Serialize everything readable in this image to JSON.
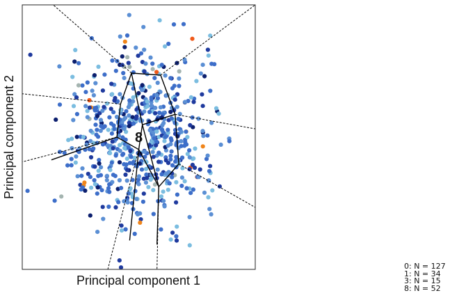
{
  "chart_data": {
    "type": "scatter",
    "title": "",
    "xlabel": "Principal component 1",
    "ylabel": "Principal component 2",
    "xlim": [
      -3.2,
      3.2
    ],
    "ylim": [
      -3.2,
      3.2
    ],
    "grid": false,
    "center": [
      0,
      0
    ],
    "center_label": "8",
    "point_colors": [
      "#3d6ec9",
      "#5b8fd4",
      "#7bbde0",
      "#1f3a9e",
      "#0c1f6e",
      "#a4b4b0",
      "#f0851a",
      "#f05a1a"
    ],
    "point_color_weights": [
      0.34,
      0.22,
      0.18,
      0.12,
      0.07,
      0.04,
      0.02,
      0.01
    ],
    "n_points": 680,
    "point_seed": 7,
    "boundary_rays": [
      {
        "from": [
          -0.2,
          1.55
        ],
        "to": [
          -2.35,
          3.2
        ],
        "solid_to": [
          -0.2,
          1.55
        ]
      },
      {
        "from": [
          0.6,
          1.5
        ],
        "to": [
          3.2,
          3.2
        ]
      },
      {
        "from": [
          1.0,
          0.55
        ],
        "to": [
          3.2,
          0.2
        ]
      },
      {
        "from": [
          1.1,
          -0.65
        ],
        "to": [
          3.2,
          -1.7
        ]
      },
      {
        "from": [
          0.0,
          -0.3
        ],
        "to": [
          -0.85,
          -3.2
        ]
      },
      {
        "from": [
          0.55,
          -1.2
        ],
        "to": [
          0.5,
          -3.2
        ]
      },
      {
        "from": [
          -0.6,
          0.0
        ],
        "to": [
          -3.2,
          -0.6
        ]
      },
      {
        "from": [
          -0.5,
          0.8
        ],
        "to": [
          -3.2,
          1.05
        ]
      }
    ],
    "inner_edges": [
      [
        [
          -0.2,
          1.55
        ],
        [
          0.6,
          1.5
        ]
      ],
      [
        [
          0.6,
          1.5
        ],
        [
          1.0,
          0.55
        ]
      ],
      [
        [
          1.0,
          0.55
        ],
        [
          1.1,
          -0.65
        ]
      ],
      [
        [
          1.1,
          -0.65
        ],
        [
          0.55,
          -1.2
        ]
      ],
      [
        [
          0.55,
          -1.2
        ],
        [
          0.0,
          -0.3
        ]
      ],
      [
        [
          0.0,
          -0.3
        ],
        [
          -0.6,
          0.0
        ]
      ],
      [
        [
          -0.6,
          0.0
        ],
        [
          -0.5,
          0.8
        ]
      ],
      [
        [
          -0.5,
          0.8
        ],
        [
          -0.2,
          1.55
        ]
      ],
      [
        [
          -0.2,
          1.55
        ],
        [
          0.1,
          0.3
        ]
      ],
      [
        [
          0.1,
          0.3
        ],
        [
          1.0,
          0.55
        ]
      ],
      [
        [
          0.1,
          0.3
        ],
        [
          0.0,
          -0.3
        ]
      ],
      [
        [
          0.1,
          0.3
        ],
        [
          0.55,
          -1.2
        ]
      ],
      [
        [
          -0.6,
          0.0
        ],
        [
          -2.4,
          -0.55
        ]
      ],
      [
        [
          0.0,
          -0.3
        ],
        [
          -0.25,
          -2.5
        ]
      ],
      [
        [
          0.55,
          -1.2
        ],
        [
          0.5,
          -2.6
        ]
      ]
    ]
  },
  "legend": {
    "entries": [
      "0: N = 127",
      "1: N = 34",
      "3: N = 15",
      "8: N = 52"
    ]
  }
}
